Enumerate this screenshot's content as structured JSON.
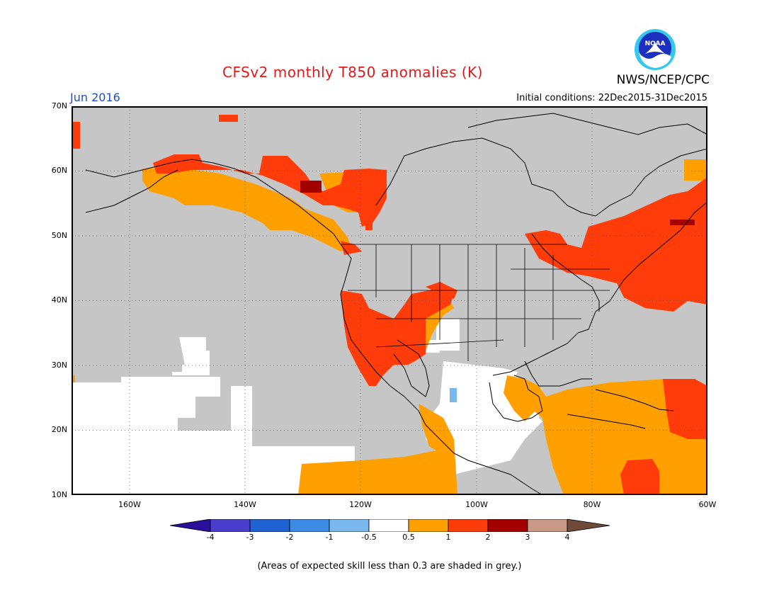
{
  "header": {
    "title": "CFSv2 monthly T850 anomalies (K)",
    "agency": "NWS/NCEP/CPC",
    "logo_text": "NOAA",
    "month": "Jun 2016",
    "initial_conditions": "Initial conditions: 22Dec2015-31Dec2015"
  },
  "map": {
    "lat_labels": [
      "70N",
      "60N",
      "50N",
      "40N",
      "30N",
      "20N",
      "10N"
    ],
    "lon_labels": [
      "160W",
      "140W",
      "120W",
      "100W",
      "80W",
      "60W"
    ],
    "background_grey": "#c6c6c6",
    "grid": "dotted"
  },
  "colorbar": {
    "labels": [
      "-4",
      "-3",
      "-2",
      "-1",
      "-0.5",
      "0.5",
      "1",
      "2",
      "3",
      "4"
    ],
    "colors": [
      "#2a0f9c",
      "#4a3fcc",
      "#1f63d2",
      "#3c8ce6",
      "#7ab8ee",
      "#ffffff",
      "#ff9f00",
      "#ff3c0a",
      "#a30000",
      "#c89a86",
      "#6e4a3a"
    ]
  },
  "footnote": "(Areas of expected skill less than 0.3 are shaded in grey.)"
}
